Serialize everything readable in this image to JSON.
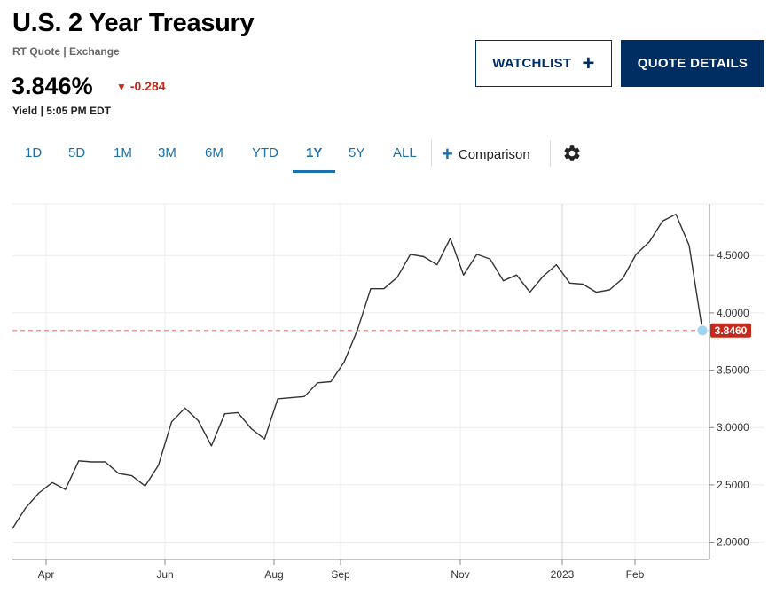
{
  "header": {
    "title": "U.S. 2 Year Treasury",
    "subtitle": "RT Quote | Exchange",
    "price": "3.846%",
    "change": "-0.284",
    "change_icon": "triangle-down-icon",
    "yield_time": "Yield | 5:05 PM EDT"
  },
  "buttons": {
    "watchlist": "WATCHLIST",
    "watchlist_icon": "plus-icon",
    "quote_details": "QUOTE DETAILS"
  },
  "tabs": [
    {
      "label": "1D"
    },
    {
      "label": "5D"
    },
    {
      "label": "1M"
    },
    {
      "label": "3M"
    },
    {
      "label": "6M"
    },
    {
      "label": "YTD"
    },
    {
      "label": "1Y",
      "active": true
    },
    {
      "label": "5Y"
    },
    {
      "label": "ALL"
    }
  ],
  "comparison_label": "Comparison",
  "settings_icon": "gear-icon",
  "colors": {
    "brand": "#002d62",
    "link": "#1a6fad",
    "negative": "#c5281c",
    "line": "#333333",
    "marker": "#9fd4f0"
  },
  "chart_data": {
    "type": "line",
    "x_ticks": [
      "Apr",
      "Jun",
      "Aug",
      "Sep",
      "Nov",
      "2023",
      "Feb"
    ],
    "y_ticks": [
      "2.0000",
      "2.5000",
      "3.0000",
      "3.5000",
      "4.0000",
      "4.5000"
    ],
    "ylim": [
      1.85,
      4.95
    ],
    "current_value": 3.846,
    "current_label": "3.8460",
    "series": [
      {
        "values": [
          2.12,
          2.3,
          2.43,
          2.52,
          2.46,
          2.71,
          2.7,
          2.7,
          2.6,
          2.58,
          2.49,
          2.67,
          3.05,
          3.17,
          3.06,
          2.84,
          3.12,
          3.13,
          2.99,
          2.9,
          3.25,
          3.26,
          3.27,
          3.39,
          3.4,
          3.57,
          3.85,
          4.21,
          4.21,
          4.31,
          4.51,
          4.49,
          4.42,
          4.65,
          4.33,
          4.51,
          4.47,
          4.28,
          4.33,
          4.18,
          4.32,
          4.42,
          4.26,
          4.25,
          4.18,
          4.2,
          4.3,
          4.51,
          4.62,
          4.8,
          4.86,
          4.59,
          3.846
        ]
      }
    ]
  }
}
